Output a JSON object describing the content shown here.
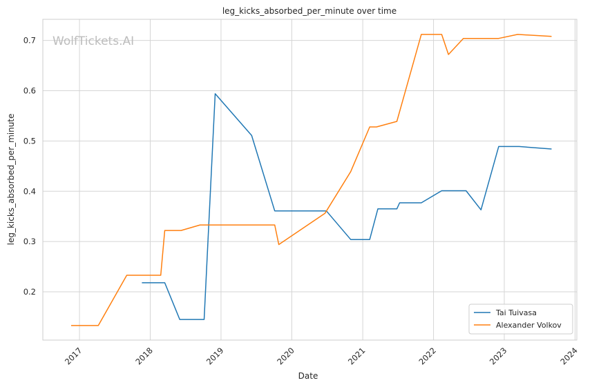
{
  "chart_data": {
    "type": "line",
    "title": "leg_kicks_absorbed_per_minute over time",
    "xlabel": "Date",
    "ylabel": "leg_kicks_absorbed_per_minute",
    "watermark": "WolfTickets.AI",
    "xlim": [
      "2016-06-26",
      "2024-01-10"
    ],
    "ylim": [
      0.104,
      0.742
    ],
    "x_ticks": [
      "2017",
      "2018",
      "2019",
      "2020",
      "2021",
      "2022",
      "2023",
      "2024"
    ],
    "y_ticks": [
      "0.2",
      "0.3",
      "0.4",
      "0.5",
      "0.6",
      "0.7"
    ],
    "grid": true,
    "legend_position": "bottom-right",
    "series": [
      {
        "name": "Tai Tuivasa",
        "color": "#1f77b4",
        "points": [
          {
            "x": "2017-11-19",
            "y": 0.218
          },
          {
            "x": "2018-03-17",
            "y": 0.218
          },
          {
            "x": "2018-06-02",
            "y": 0.145
          },
          {
            "x": "2018-10-06",
            "y": 0.145
          },
          {
            "x": "2018-12-02",
            "y": 0.594
          },
          {
            "x": "2019-06-08",
            "y": 0.511
          },
          {
            "x": "2019-10-05",
            "y": 0.361
          },
          {
            "x": "2020-06-27",
            "y": 0.361
          },
          {
            "x": "2020-10-31",
            "y": 0.304
          },
          {
            "x": "2021-02-06",
            "y": 0.304
          },
          {
            "x": "2021-03-20",
            "y": 0.365
          },
          {
            "x": "2021-06-26",
            "y": 0.365
          },
          {
            "x": "2021-07-10",
            "y": 0.377
          },
          {
            "x": "2021-10-30",
            "y": 0.377
          },
          {
            "x": "2022-02-12",
            "y": 0.401
          },
          {
            "x": "2022-06-18",
            "y": 0.401
          },
          {
            "x": "2022-09-03",
            "y": 0.363
          },
          {
            "x": "2022-12-03",
            "y": 0.489
          },
          {
            "x": "2023-03-18",
            "y": 0.489
          },
          {
            "x": "2023-09-02",
            "y": 0.484
          }
        ]
      },
      {
        "name": "Alexander Volkov",
        "color": "#ff7f0e",
        "points": [
          {
            "x": "2016-11-19",
            "y": 0.133
          },
          {
            "x": "2017-04-08",
            "y": 0.133
          },
          {
            "x": "2017-09-02",
            "y": 0.233
          },
          {
            "x": "2018-02-24",
            "y": 0.233
          },
          {
            "x": "2018-03-17",
            "y": 0.322
          },
          {
            "x": "2018-06-09",
            "y": 0.322
          },
          {
            "x": "2018-09-15",
            "y": 0.333
          },
          {
            "x": "2019-10-05",
            "y": 0.333
          },
          {
            "x": "2019-10-26",
            "y": 0.294
          },
          {
            "x": "2020-06-20",
            "y": 0.356
          },
          {
            "x": "2020-10-31",
            "y": 0.439
          },
          {
            "x": "2021-02-06",
            "y": 0.528
          },
          {
            "x": "2021-03-13",
            "y": 0.528
          },
          {
            "x": "2021-06-26",
            "y": 0.539
          },
          {
            "x": "2021-10-30",
            "y": 0.712
          },
          {
            "x": "2022-02-12",
            "y": 0.712
          },
          {
            "x": "2022-03-19",
            "y": 0.672
          },
          {
            "x": "2022-06-04",
            "y": 0.704
          },
          {
            "x": "2022-12-03",
            "y": 0.704
          },
          {
            "x": "2023-03-11",
            "y": 0.712
          },
          {
            "x": "2023-09-02",
            "y": 0.708
          }
        ]
      }
    ]
  }
}
